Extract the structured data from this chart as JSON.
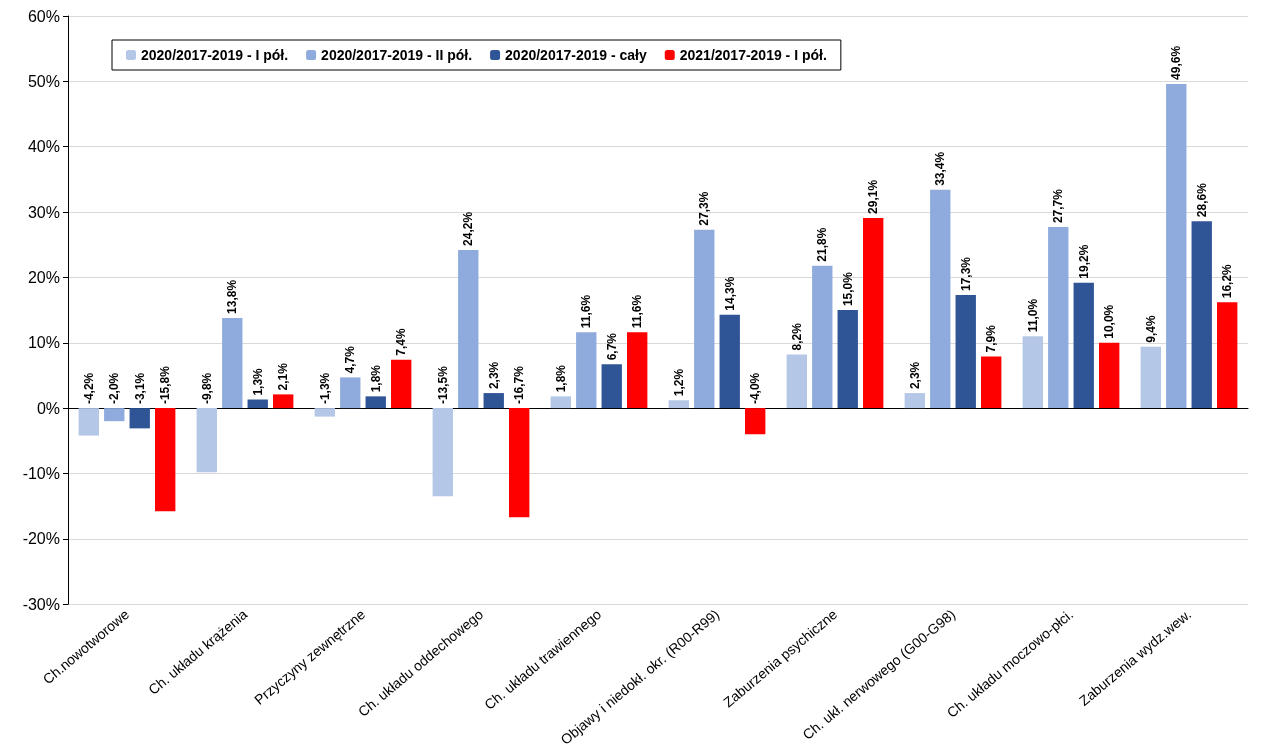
{
  "chart_data": {
    "type": "bar",
    "categories": [
      "Ch.nowotworowe",
      "Ch. układu krążenia",
      "Przyczyny zewnętrzne",
      "Ch. układu oddechowego",
      "Ch. układu trawiennego",
      "Objawy i niedokł. okr. (R00-R99)",
      "Zaburzenia psychiczne",
      "Ch. ukł. nerwowego (G00-G98)",
      "Ch. układu moczowo-płci.",
      "Zaburzenia wydz.wew."
    ],
    "series": [
      {
        "name": "2020/2017-2019 - I pół.",
        "color": "#b4c7e7",
        "values": [
          -4.2,
          -9.8,
          -1.3,
          -13.5,
          1.8,
          1.2,
          8.2,
          2.3,
          11.0,
          9.4
        ],
        "value_labels": [
          "-4,2%",
          "-9,8%",
          "-1,3%",
          "-13,5%",
          "1,8%",
          "1,2%",
          "8,2%",
          "2,3%",
          "11,0%",
          "9,4%"
        ]
      },
      {
        "name": "2020/2017-2019 - II pół.",
        "color": "#8faadc",
        "values": [
          -2.0,
          13.8,
          4.7,
          24.2,
          11.6,
          27.3,
          21.8,
          33.4,
          27.7,
          49.6
        ],
        "value_labels": [
          "-2,0%",
          "13,8%",
          "4,7%",
          "24,2%",
          "11,6%",
          "27,3%",
          "21,8%",
          "33,4%",
          "27,7%",
          "49,6%"
        ]
      },
      {
        "name": "2020/2017-2019 - cały",
        "color": "#2f5597",
        "values": [
          -3.1,
          1.3,
          1.8,
          2.3,
          6.7,
          14.3,
          15.0,
          17.3,
          19.2,
          28.6
        ],
        "value_labels": [
          "-3,1%",
          "1,3%",
          "1,8%",
          "2,3%",
          "6,7%",
          "14,3%",
          "15,0%",
          "17,3%",
          "19,2%",
          "28,6%"
        ]
      },
      {
        "name": "2021/2017-2019 - I pół.",
        "color": "#ff0000",
        "values": [
          -15.8,
          2.1,
          7.4,
          -16.7,
          11.6,
          -4.0,
          29.1,
          7.9,
          10.0,
          16.2
        ],
        "value_labels": [
          "-15,8%",
          "2,1%",
          "7,4%",
          "-16,7%",
          "11,6%",
          "-4,0%",
          "29,1%",
          "7,9%",
          "10,0%",
          "16,2%"
        ]
      }
    ],
    "ylim": [
      -30,
      60
    ],
    "yticks": [
      {
        "value": -30,
        "label": "-30%"
      },
      {
        "value": -20,
        "label": "-20%"
      },
      {
        "value": -10,
        "label": "-10%"
      },
      {
        "value": 0,
        "label": "0%"
      },
      {
        "value": 10,
        "label": "10%"
      },
      {
        "value": 20,
        "label": "20%"
      },
      {
        "value": 30,
        "label": "30%"
      },
      {
        "value": 40,
        "label": "40%"
      },
      {
        "value": 50,
        "label": "50%"
      },
      {
        "value": 60,
        "label": "60%"
      }
    ],
    "grid": "y",
    "legend": "top"
  }
}
